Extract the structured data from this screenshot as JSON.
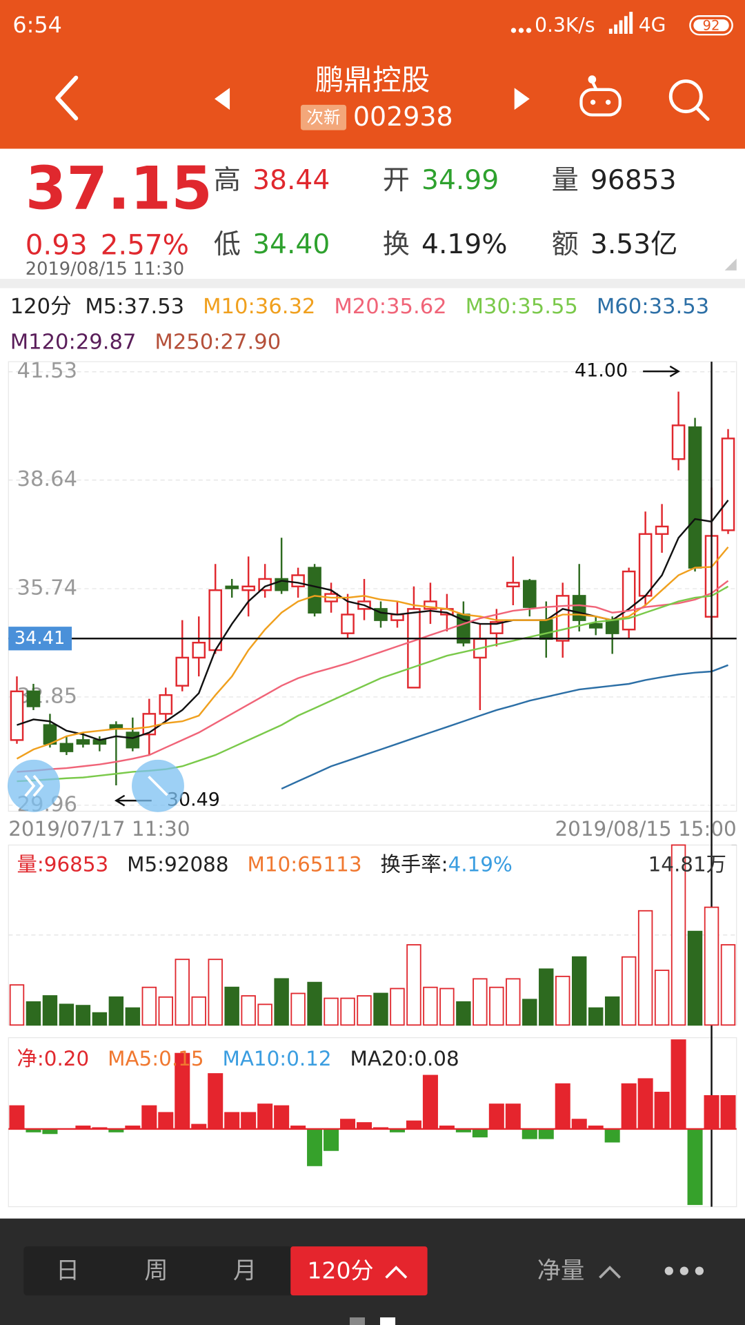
{
  "status_bar": {
    "time": "6:54",
    "speed": "0.3K/s",
    "network": "4G",
    "battery": "92"
  },
  "header": {
    "title": "鹏鼎控股",
    "badge": "次新",
    "code": "002938"
  },
  "quote": {
    "price": "37.15",
    "change": "0.93",
    "change_pct": "2.57%",
    "datetime": "2019/08/15 11:30",
    "price_color": "#e0282e",
    "stats": [
      {
        "label": "高",
        "value": "38.44",
        "color": "#e0282e"
      },
      {
        "label": "开",
        "value": "34.99",
        "color": "#2ea12e"
      },
      {
        "label": "量",
        "value": "96853",
        "color": "#222222"
      },
      {
        "label": "低",
        "value": "34.40",
        "color": "#2ea12e"
      },
      {
        "label": "换",
        "value": "4.19%",
        "color": "#222222"
      },
      {
        "label": "额",
        "value": "3.53亿",
        "color": "#222222"
      }
    ]
  },
  "ma_legend": {
    "period": "120分",
    "items": [
      {
        "text": "M5:37.53",
        "color": "#222222"
      },
      {
        "text": "M10:36.32",
        "color": "#f0a01e"
      },
      {
        "text": "M20:35.62",
        "color": "#f06478"
      },
      {
        "text": "M30:35.55",
        "color": "#7ac94a"
      },
      {
        "text": "M60:33.53",
        "color": "#2c6fa6"
      },
      {
        "text": "M120:29.87",
        "color": "#5a1e5a"
      },
      {
        "text": "M250:27.90",
        "color": "#b5503a"
      }
    ]
  },
  "chart_data": [
    {
      "type": "candlestick",
      "up_color": "#e0282e",
      "down_color": "#2d6a1f",
      "open": [
        31.7,
        33.0,
        32.1,
        31.6,
        31.7,
        31.7,
        32.1,
        31.9,
        31.85,
        32.4,
        33.15,
        33.9,
        34.1,
        35.8,
        35.7,
        35.7,
        36.0,
        35.8,
        36.3,
        35.4,
        34.55,
        35.2,
        35.2,
        34.9,
        33.1,
        35.2,
        35.05,
        35.05,
        33.9,
        34.55,
        35.8,
        35.95,
        34.9,
        34.35,
        35.55,
        34.8,
        34.9,
        34.65,
        35.55,
        37.2,
        39.2,
        40.05,
        34.99,
        37.3
      ],
      "high": [
        33.4,
        33.2,
        32.4,
        31.8,
        31.9,
        31.8,
        32.2,
        32.3,
        32.8,
        33.1,
        34.9,
        35.0,
        36.4,
        36.0,
        36.6,
        36.4,
        37.1,
        36.3,
        36.4,
        35.9,
        35.6,
        36.0,
        35.4,
        35.4,
        35.8,
        35.9,
        35.6,
        35.4,
        34.8,
        35.2,
        36.6,
        36.0,
        35.4,
        35.9,
        36.4,
        35.0,
        35.0,
        36.3,
        37.8,
        38.0,
        41.0,
        40.3,
        38.44,
        40.0
      ],
      "low": [
        31.6,
        32.5,
        31.5,
        31.3,
        31.5,
        31.4,
        30.49,
        31.4,
        31.3,
        32.2,
        33.0,
        33.4,
        34.0,
        35.5,
        35.0,
        35.5,
        35.6,
        35.5,
        35.0,
        35.1,
        34.4,
        34.9,
        34.7,
        34.7,
        33.1,
        34.8,
        34.6,
        34.2,
        32.5,
        34.2,
        35.3,
        35.0,
        33.9,
        33.9,
        34.6,
        34.5,
        34.0,
        34.4,
        35.3,
        36.7,
        38.9,
        36.2,
        34.4,
        37.2
      ],
      "close": [
        33.0,
        32.6,
        31.6,
        31.4,
        31.6,
        31.6,
        32.0,
        31.5,
        32.4,
        32.9,
        33.9,
        34.3,
        35.7,
        35.75,
        35.8,
        36.0,
        35.7,
        36.1,
        35.1,
        35.6,
        35.05,
        35.4,
        34.9,
        35.05,
        35.2,
        35.4,
        35.2,
        34.3,
        34.4,
        34.85,
        35.9,
        35.25,
        34.4,
        35.55,
        34.9,
        34.7,
        34.55,
        36.2,
        37.2,
        37.4,
        40.1,
        36.3,
        37.15,
        39.75
      ],
      "series": [
        {
          "color": "#111111",
          "values": [
            32.1,
            32.25,
            32.2,
            31.95,
            31.85,
            31.7,
            31.8,
            31.75,
            31.9,
            32.2,
            32.5,
            32.95,
            34.1,
            34.8,
            35.4,
            35.8,
            35.95,
            35.9,
            35.8,
            35.7,
            35.4,
            35.3,
            35.1,
            35.05,
            35.1,
            35.15,
            35.1,
            34.9,
            34.8,
            34.8,
            34.9,
            34.9,
            34.9,
            35.2,
            35.1,
            35.0,
            34.9,
            35.2,
            35.55,
            36.1,
            37.1,
            37.6,
            37.53,
            38.1
          ]
        },
        {
          "color": "#f0a01e",
          "values": [
            31.2,
            31.45,
            31.6,
            31.8,
            31.9,
            31.95,
            32.0,
            32.0,
            32.05,
            32.15,
            32.2,
            32.35,
            32.9,
            33.4,
            34.1,
            34.65,
            35.1,
            35.4,
            35.55,
            35.5,
            35.5,
            35.55,
            35.45,
            35.4,
            35.3,
            35.25,
            35.2,
            35.05,
            35.0,
            34.9,
            34.9,
            34.9,
            34.9,
            35.05,
            35.05,
            35.0,
            34.9,
            35.0,
            35.3,
            35.7,
            36.1,
            36.3,
            36.32,
            36.85
          ]
        },
        {
          "color": "#f06478",
          "values": [
            30.85,
            30.88,
            30.92,
            30.95,
            31.0,
            31.05,
            31.12,
            31.2,
            31.3,
            31.5,
            31.7,
            31.9,
            32.15,
            32.4,
            32.65,
            32.9,
            33.15,
            33.35,
            33.5,
            33.62,
            33.75,
            33.9,
            34.05,
            34.2,
            34.35,
            34.5,
            34.65,
            34.8,
            34.95,
            35.05,
            35.15,
            35.2,
            35.25,
            35.28,
            35.3,
            35.25,
            35.1,
            35.15,
            35.25,
            35.3,
            35.35,
            35.45,
            35.62,
            35.95
          ]
        },
        {
          "color": "#7ac94a",
          "values": [
            30.6,
            30.62,
            30.65,
            30.68,
            30.7,
            30.75,
            30.8,
            30.85,
            30.88,
            30.92,
            31.0,
            31.15,
            31.3,
            31.5,
            31.7,
            31.9,
            32.1,
            32.35,
            32.55,
            32.75,
            32.95,
            33.15,
            33.35,
            33.5,
            33.65,
            33.8,
            33.95,
            34.05,
            34.15,
            34.25,
            34.35,
            34.45,
            34.55,
            34.65,
            34.75,
            34.85,
            34.9,
            34.95,
            35.1,
            35.25,
            35.4,
            35.5,
            35.55,
            35.8
          ]
        },
        {
          "color": "#2c6fa6",
          "values": [
            null,
            null,
            null,
            null,
            null,
            null,
            null,
            null,
            null,
            null,
            null,
            null,
            null,
            null,
            null,
            null,
            30.4,
            30.6,
            30.8,
            31.0,
            31.15,
            31.3,
            31.45,
            31.6,
            31.75,
            31.9,
            32.05,
            32.2,
            32.35,
            32.5,
            32.62,
            32.75,
            32.85,
            32.95,
            33.05,
            33.1,
            33.15,
            33.2,
            33.3,
            33.38,
            33.45,
            33.5,
            33.53,
            33.7
          ]
        }
      ],
      "ylim": [
        29.8,
        41.8
      ],
      "yticks": [
        41.53,
        38.64,
        35.74,
        32.85,
        29.96
      ],
      "grid": true,
      "max_label": "41.00",
      "min_label": "30.49",
      "crosshair": {
        "y": 34.41,
        "index": 42
      },
      "x_labels": [
        "2019/07/17 11:30",
        "2019/08/15 15:00"
      ]
    },
    {
      "type": "bar",
      "legend": [
        {
          "text": "量:96853",
          "color": "#e0282e"
        },
        {
          "text": "M5:92088",
          "color": "#222222"
        },
        {
          "text": "M10:65113",
          "color": "#f07830"
        },
        {
          "text": "换手率:",
          "color": "#222222"
        },
        {
          "text": "4.19%",
          "color": "#3a9de0"
        }
      ],
      "values": [
        3.3,
        1.9,
        2.4,
        1.7,
        1.6,
        1.0,
        2.3,
        1.4,
        3.1,
        2.3,
        5.4,
        2.3,
        5.4,
        3.1,
        2.4,
        1.7,
        3.8,
        2.6,
        3.5,
        2.2,
        2.2,
        2.4,
        2.6,
        3.0,
        6.6,
        3.1,
        3.0,
        1.9,
        3.8,
        3.1,
        3.8,
        2.1,
        4.6,
        4.0,
        5.6,
        1.4,
        2.3,
        5.6,
        9.4,
        4.5,
        14.81,
        7.7,
        9.69,
        6.6
      ],
      "ylim": [
        0,
        14.81
      ],
      "yticks": [
        {
          "value": 14.81,
          "label": "14.81万"
        }
      ]
    },
    {
      "type": "bar",
      "legend": [
        {
          "text": "净:0.20",
          "color": "#e0282e"
        },
        {
          "text": "MA5:0.15",
          "color": "#f07830"
        },
        {
          "text": "MA10:0.12",
          "color": "#3a9de0"
        },
        {
          "text": "MA20:0.08",
          "color": "#222222"
        }
      ],
      "pos_color": "#e5252d",
      "neg_color": "#36a12b",
      "values": [
        0.14,
        -0.02,
        -0.03,
        0.0,
        0.02,
        0.01,
        -0.02,
        0.02,
        0.14,
        0.1,
        0.45,
        0.03,
        0.33,
        0.1,
        0.1,
        0.15,
        0.14,
        0.02,
        -0.22,
        -0.13,
        0.06,
        0.04,
        0.01,
        -0.02,
        0.05,
        0.32,
        0.02,
        -0.02,
        -0.05,
        0.15,
        0.15,
        -0.06,
        -0.06,
        0.27,
        0.06,
        0.02,
        -0.08,
        0.27,
        0.3,
        0.22,
        0.53,
        -0.45,
        0.2,
        0.2
      ],
      "ylim": [
        -0.46,
        0.54
      ]
    }
  ],
  "toolbar": {
    "tabs": [
      "日",
      "周",
      "月"
    ],
    "active": "120分",
    "indicator": "净量"
  }
}
